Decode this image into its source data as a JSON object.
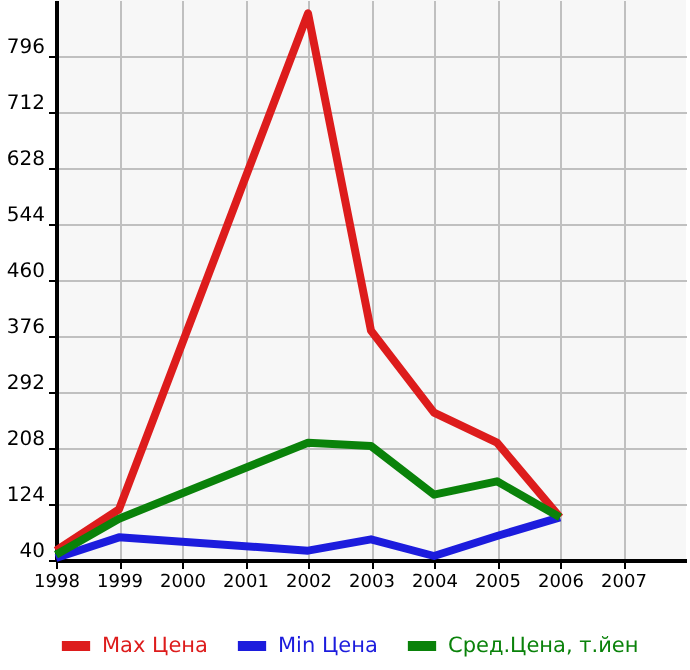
{
  "chart_data": {
    "type": "line",
    "x": [
      1998,
      1999,
      2002,
      2003,
      2004,
      2005,
      2006
    ],
    "series": [
      {
        "name": "Max Цена",
        "color": "#dd1c1c",
        "values": [
          54,
          116,
          860,
          384,
          261,
          216,
          104
        ]
      },
      {
        "name": "Min Цена",
        "color": "#1c1cdd",
        "values": [
          43,
          74,
          54,
          71,
          46,
          76,
          104
        ]
      },
      {
        "name": "Сред.Цена, т.йен",
        "color": "#0a820a",
        "values": [
          48,
          102,
          216,
          211,
          138,
          158,
          104
        ]
      }
    ],
    "xlim": [
      1998,
      2008
    ],
    "xticks": [
      1998,
      1999,
      2000,
      2001,
      2002,
      2003,
      2004,
      2005,
      2006,
      2007
    ],
    "ylim": [
      40,
      880
    ],
    "yticks": [
      40,
      124,
      208,
      292,
      376,
      460,
      544,
      628,
      712,
      796
    ],
    "grid": true,
    "legend": "bottom",
    "marker": "none",
    "line_style": "solid"
  }
}
